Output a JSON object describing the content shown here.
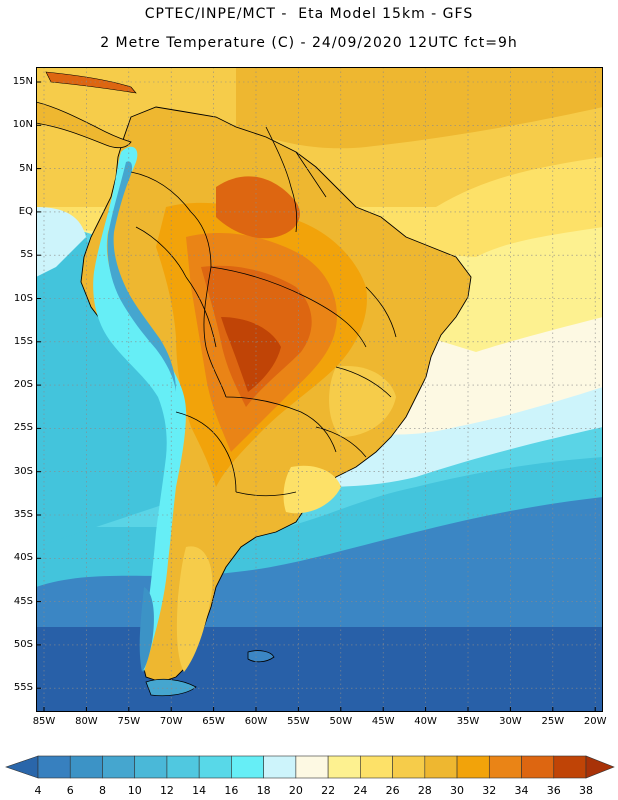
{
  "header": {
    "line1": "CPTEC/INPE/MCT -  Eta Model 15km - GFS",
    "line2": "2 Metre Temperature (C) - 24/09/2020 12UTC fct=9h"
  },
  "map": {
    "lat_labels": [
      "15N",
      "10N",
      "5N",
      "EQ",
      "5S",
      "10S",
      "15S",
      "20S",
      "25S",
      "30S",
      "35S",
      "40S",
      "45S",
      "50S",
      "55S"
    ],
    "lon_labels": [
      "85W",
      "80W",
      "75W",
      "70W",
      "65W",
      "60W",
      "55W",
      "50W",
      "45W",
      "40W",
      "35W",
      "30W",
      "25W",
      "20W"
    ]
  },
  "colorbar": {
    "values": [
      "4",
      "6",
      "8",
      "10",
      "12",
      "14",
      "16",
      "18",
      "20",
      "22",
      "24",
      "26",
      "28",
      "30",
      "32",
      "34",
      "36",
      "38"
    ],
    "colors": [
      "#2a66aa",
      "#3780bf",
      "#3c93c6",
      "#45a6cf",
      "#4ab8d8",
      "#50c8e0",
      "#58d8e8",
      "#66eef6",
      "#cdf4fb",
      "#fdf9e3",
      "#fdf190",
      "#fde168",
      "#f6cc4a",
      "#eeb730",
      "#f2a30a",
      "#ea8416",
      "#dd6611",
      "#c04406",
      "#a83208"
    ]
  },
  "palette": {
    "ocean_deep": "#2860a8",
    "ocean_mid": "#3b86c4",
    "ocean_light": "#43c4dc",
    "ocean_cyan": "#5ad4e6",
    "coast_cool": "#b5ecf7",
    "warm_north": "#f5c84a",
    "hot": "#e07d1c",
    "very_hot": "#c9560e",
    "border": "#000000"
  }
}
